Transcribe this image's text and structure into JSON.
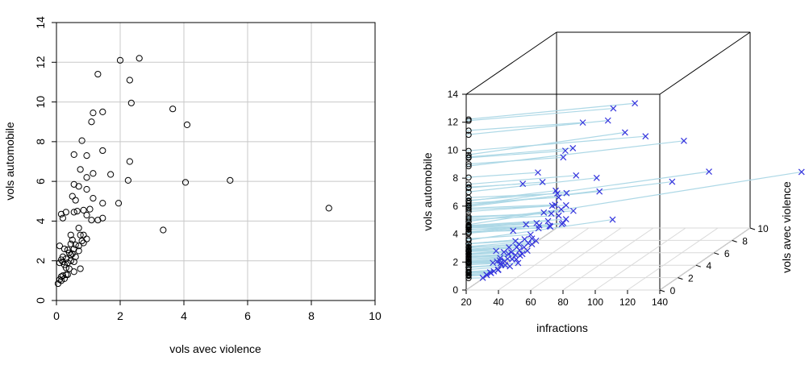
{
  "chart_data": [
    {
      "type": "scatter",
      "xlabel": "vols avec violence",
      "ylabel": "vols automobile",
      "xlim": [
        0,
        10
      ],
      "ylim": [
        0,
        14
      ],
      "xticks": [
        "0",
        "2",
        "4",
        "6",
        "8",
        "10"
      ],
      "yticks": [
        "0",
        "2",
        "4",
        "6",
        "8",
        "10",
        "12",
        "14"
      ],
      "grid": true,
      "marker": "open-circle",
      "points": [
        [
          2.0,
          12.1
        ],
        [
          2.6,
          12.2
        ],
        [
          1.3,
          11.4
        ],
        [
          2.3,
          11.1
        ],
        [
          2.35,
          9.95
        ],
        [
          1.15,
          9.45
        ],
        [
          1.45,
          9.5
        ],
        [
          1.1,
          9.0
        ],
        [
          3.65,
          9.65
        ],
        [
          4.1,
          8.85
        ],
        [
          0.8,
          8.05
        ],
        [
          0.55,
          7.35
        ],
        [
          1.45,
          7.55
        ],
        [
          0.95,
          7.3
        ],
        [
          2.3,
          7.0
        ],
        [
          0.75,
          6.6
        ],
        [
          1.15,
          6.4
        ],
        [
          1.7,
          6.35
        ],
        [
          0.95,
          6.2
        ],
        [
          2.25,
          6.05
        ],
        [
          4.05,
          5.95
        ],
        [
          5.45,
          6.05
        ],
        [
          0.55,
          5.85
        ],
        [
          0.7,
          5.75
        ],
        [
          0.95,
          5.6
        ],
        [
          0.5,
          5.25
        ],
        [
          0.6,
          5.05
        ],
        [
          1.15,
          5.15
        ],
        [
          1.45,
          4.9
        ],
        [
          1.95,
          4.9
        ],
        [
          0.15,
          4.35
        ],
        [
          0.3,
          4.45
        ],
        [
          0.55,
          4.45
        ],
        [
          0.65,
          4.5
        ],
        [
          0.85,
          4.55
        ],
        [
          1.05,
          4.6
        ],
        [
          0.95,
          4.3
        ],
        [
          0.2,
          4.15
        ],
        [
          1.3,
          4.05
        ],
        [
          1.45,
          4.15
        ],
        [
          1.1,
          4.05
        ],
        [
          8.55,
          4.65
        ],
        [
          3.35,
          3.55
        ],
        [
          0.7,
          3.65
        ],
        [
          0.45,
          3.3
        ],
        [
          0.75,
          3.3
        ],
        [
          0.85,
          3.3
        ],
        [
          0.5,
          3.05
        ],
        [
          0.8,
          3.0
        ],
        [
          0.95,
          3.1
        ],
        [
          0.45,
          2.85
        ],
        [
          0.6,
          2.8
        ],
        [
          0.7,
          2.75
        ],
        [
          0.85,
          2.9
        ],
        [
          0.1,
          2.75
        ],
        [
          0.25,
          2.6
        ],
        [
          0.35,
          2.55
        ],
        [
          0.55,
          2.6
        ],
        [
          0.7,
          2.5
        ],
        [
          0.4,
          2.4
        ],
        [
          0.45,
          2.3
        ],
        [
          0.5,
          2.35
        ],
        [
          0.2,
          2.2
        ],
        [
          0.6,
          2.2
        ],
        [
          0.3,
          2.1
        ],
        [
          0.15,
          2.05
        ],
        [
          0.45,
          2.0
        ],
        [
          0.55,
          1.95
        ],
        [
          0.35,
          1.9
        ],
        [
          0.25,
          1.8
        ],
        [
          0.1,
          1.9
        ],
        [
          0.2,
          1.95
        ],
        [
          0.3,
          1.65
        ],
        [
          0.4,
          1.6
        ],
        [
          0.75,
          1.6
        ],
        [
          0.55,
          1.45
        ],
        [
          0.3,
          1.3
        ],
        [
          0.2,
          1.25
        ],
        [
          0.35,
          1.3
        ],
        [
          0.15,
          1.2
        ],
        [
          0.25,
          1.1
        ],
        [
          0.1,
          1.05
        ],
        [
          0.05,
          0.85
        ],
        [
          0.15,
          1.0
        ]
      ]
    },
    {
      "type": "scatter3d",
      "xlabel": "infractions",
      "ylabel": "vols avec violence",
      "zlabel": "vols automobile",
      "xlim": [
        20,
        140
      ],
      "ylim": [
        0,
        10
      ],
      "zlim": [
        0,
        14
      ],
      "xticks": [
        "20",
        "40",
        "60",
        "80",
        "100",
        "120",
        "140"
      ],
      "yticks": [
        "0",
        "2",
        "4",
        "6",
        "8",
        "10"
      ],
      "zticks": [
        "0",
        "2",
        "4",
        "6",
        "8",
        "10",
        "12",
        "14"
      ],
      "marker_left": "open-circle",
      "marker_point": "x",
      "point_color": "#3333dd",
      "drop_line_color": "#add8e6",
      "points": [
        [
          100,
          2.0,
          12.1
        ],
        [
          110,
          2.6,
          12.2
        ],
        [
          85,
          1.3,
          11.4
        ],
        [
          95,
          2.3,
          11.1
        ],
        [
          118,
          2.35,
          9.95
        ],
        [
          75,
          1.15,
          9.45
        ],
        [
          78,
          1.45,
          9.5
        ],
        [
          74,
          1.1,
          9.0
        ],
        [
          98,
          3.65,
          9.65
        ],
        [
          132,
          4.1,
          8.85
        ],
        [
          60,
          0.8,
          8.05
        ],
        [
          52,
          0.55,
          7.35
        ],
        [
          80,
          1.45,
          7.55
        ],
        [
          62,
          0.95,
          7.3
        ],
        [
          88,
          2.3,
          7.0
        ],
        [
          78,
          0.75,
          6.6
        ],
        [
          70,
          1.15,
          6.4
        ],
        [
          66,
          1.7,
          6.35
        ],
        [
          72,
          0.95,
          6.2
        ],
        [
          90,
          2.25,
          6.05
        ],
        [
          125,
          4.05,
          5.95
        ],
        [
          140,
          5.45,
          6.05
        ],
        [
          72,
          0.55,
          5.85
        ],
        [
          78,
          0.7,
          5.75
        ],
        [
          68,
          0.95,
          5.6
        ],
        [
          70,
          0.5,
          5.25
        ],
        [
          74,
          0.6,
          5.05
        ],
        [
          80,
          1.15,
          5.15
        ],
        [
          60,
          1.45,
          4.9
        ],
        [
          68,
          1.95,
          4.9
        ],
        [
          64,
          0.15,
          4.35
        ],
        [
          70,
          0.3,
          4.45
        ],
        [
          54,
          0.55,
          4.45
        ],
        [
          60,
          0.65,
          4.5
        ],
        [
          66,
          0.85,
          4.55
        ],
        [
          76,
          1.05,
          4.6
        ],
        [
          74,
          0.95,
          4.3
        ],
        [
          48,
          0.2,
          4.15
        ],
        [
          58,
          1.3,
          4.05
        ],
        [
          72,
          1.45,
          4.15
        ],
        [
          66,
          1.1,
          4.05
        ],
        [
          180,
          8.55,
          4.65
        ],
        [
          92,
          3.35,
          3.55
        ],
        [
          56,
          0.7,
          3.65
        ],
        [
          48,
          0.45,
          3.3
        ],
        [
          52,
          0.75,
          3.3
        ],
        [
          56,
          0.85,
          3.3
        ],
        [
          50,
          0.5,
          3.05
        ],
        [
          54,
          0.8,
          3.0
        ],
        [
          58,
          0.95,
          3.1
        ],
        [
          44,
          0.45,
          2.85
        ],
        [
          48,
          0.6,
          2.8
        ],
        [
          52,
          0.7,
          2.75
        ],
        [
          56,
          0.85,
          2.9
        ],
        [
          38,
          0.1,
          2.75
        ],
        [
          42,
          0.25,
          2.6
        ],
        [
          46,
          0.35,
          2.55
        ],
        [
          50,
          0.55,
          2.6
        ],
        [
          54,
          0.7,
          2.5
        ],
        [
          44,
          0.4,
          2.4
        ],
        [
          48,
          0.45,
          2.3
        ],
        [
          52,
          0.5,
          2.35
        ],
        [
          40,
          0.2,
          2.2
        ],
        [
          50,
          0.6,
          2.2
        ],
        [
          44,
          0.3,
          2.1
        ],
        [
          40,
          0.15,
          2.05
        ],
        [
          46,
          0.45,
          2.0
        ],
        [
          48,
          0.55,
          1.95
        ],
        [
          42,
          0.35,
          1.9
        ],
        [
          40,
          0.25,
          1.8
        ],
        [
          36,
          0.1,
          1.9
        ],
        [
          38,
          0.2,
          1.95
        ],
        [
          40,
          0.3,
          1.65
        ],
        [
          42,
          0.4,
          1.6
        ],
        [
          48,
          0.75,
          1.6
        ],
        [
          44,
          0.55,
          1.45
        ],
        [
          38,
          0.3,
          1.3
        ],
        [
          36,
          0.2,
          1.25
        ],
        [
          38,
          0.35,
          1.3
        ],
        [
          34,
          0.15,
          1.2
        ],
        [
          34,
          0.25,
          1.1
        ],
        [
          32,
          0.1,
          1.05
        ],
        [
          30,
          0.05,
          0.85
        ],
        [
          32,
          0.15,
          1.0
        ]
      ]
    }
  ]
}
